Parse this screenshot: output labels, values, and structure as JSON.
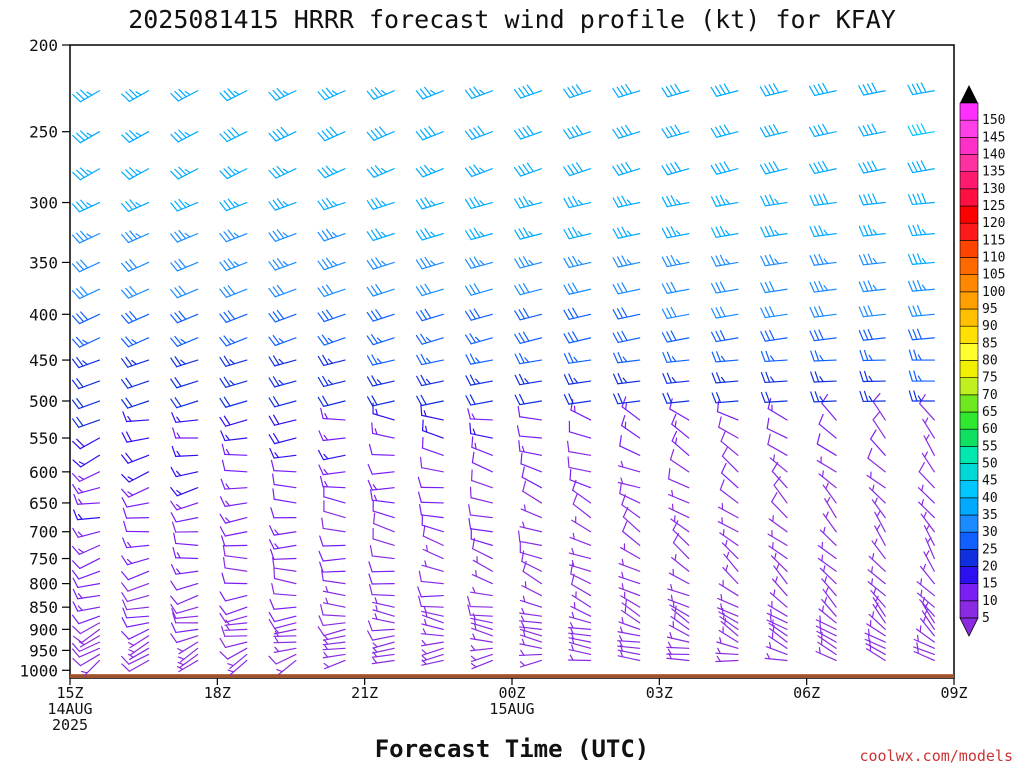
{
  "chart_data": {
    "type": "wind_barbs",
    "title": "2025081415 HRRR forecast wind profile (kt) for KFAY",
    "xlabel": "Forecast Time (UTC)",
    "ylabel": "",
    "y_scale": "log",
    "y_inverted": true,
    "ylim": [
      1020,
      200
    ],
    "xlim": [
      0,
      18
    ],
    "x_ticks": [
      {
        "x": 0,
        "lines": [
          "15Z",
          "14AUG",
          "2025"
        ]
      },
      {
        "x": 3,
        "lines": [
          "18Z"
        ]
      },
      {
        "x": 6,
        "lines": [
          "21Z"
        ]
      },
      {
        "x": 9,
        "lines": [
          "00Z",
          "15AUG"
        ]
      },
      {
        "x": 12,
        "lines": [
          "03Z"
        ]
      },
      {
        "x": 15,
        "lines": [
          "06Z"
        ]
      },
      {
        "x": 18,
        "lines": [
          "09Z"
        ]
      }
    ],
    "y_ticks": [
      200,
      250,
      300,
      350,
      400,
      450,
      500,
      550,
      600,
      650,
      700,
      750,
      800,
      850,
      900,
      950,
      1000
    ],
    "times_hours": [
      0.6,
      1.6,
      2.6,
      3.6,
      4.6,
      5.6,
      6.6,
      7.6,
      8.6,
      9.6,
      10.6,
      11.6,
      12.6,
      13.6,
      14.6,
      15.6,
      16.6,
      17.6
    ],
    "levels_hpa": [
      975,
      960,
      945,
      930,
      915,
      900,
      885,
      870,
      850,
      825,
      800,
      775,
      750,
      725,
      700,
      675,
      650,
      625,
      600,
      575,
      550,
      525,
      500,
      475,
      450,
      425,
      400,
      375,
      350,
      325,
      300,
      275,
      250,
      225
    ],
    "profile_speed_kt": [
      7,
      8,
      8,
      8,
      9,
      10,
      10,
      11,
      11,
      12,
      12,
      12,
      13,
      13,
      13,
      14,
      14,
      15,
      15,
      17,
      18,
      19,
      20,
      22,
      24,
      26,
      28,
      30,
      32,
      34,
      35,
      36,
      37,
      36
    ],
    "profile_dir_deg": [
      225,
      230,
      235,
      240,
      245,
      245,
      250,
      250,
      250,
      250,
      255,
      255,
      255,
      255,
      255,
      255,
      255,
      250,
      250,
      250,
      250,
      250,
      250,
      250,
      250,
      245,
      245,
      245,
      245,
      245,
      245,
      240,
      240,
      240
    ],
    "ground_level_hpa": 1010,
    "surface_color": "#a0522d",
    "colorbar": {
      "levels": [
        5,
        10,
        15,
        20,
        25,
        30,
        35,
        40,
        45,
        50,
        55,
        60,
        65,
        70,
        75,
        80,
        85,
        90,
        95,
        100,
        105,
        110,
        115,
        120,
        125,
        130,
        135,
        140,
        145,
        150
      ],
      "colors": [
        "#8a2be2",
        "#7a1ef5",
        "#2b10f0",
        "#1030e0",
        "#1060ff",
        "#1a8cff",
        "#00aaff",
        "#00c8ff",
        "#00d8d8",
        "#00e8b0",
        "#10e060",
        "#30e830",
        "#70e820",
        "#c0f020",
        "#f0f000",
        "#ffff30",
        "#ffe000",
        "#ffc000",
        "#ffa000",
        "#ff8800",
        "#ff6a00",
        "#ff4400",
        "#ff1a1a",
        "#ff0000",
        "#ff1040",
        "#ff1a70",
        "#ff30a0",
        "#ff30c8",
        "#ff40e8",
        "#ff30ff"
      ]
    }
  },
  "credit": "coolwx.com/models"
}
